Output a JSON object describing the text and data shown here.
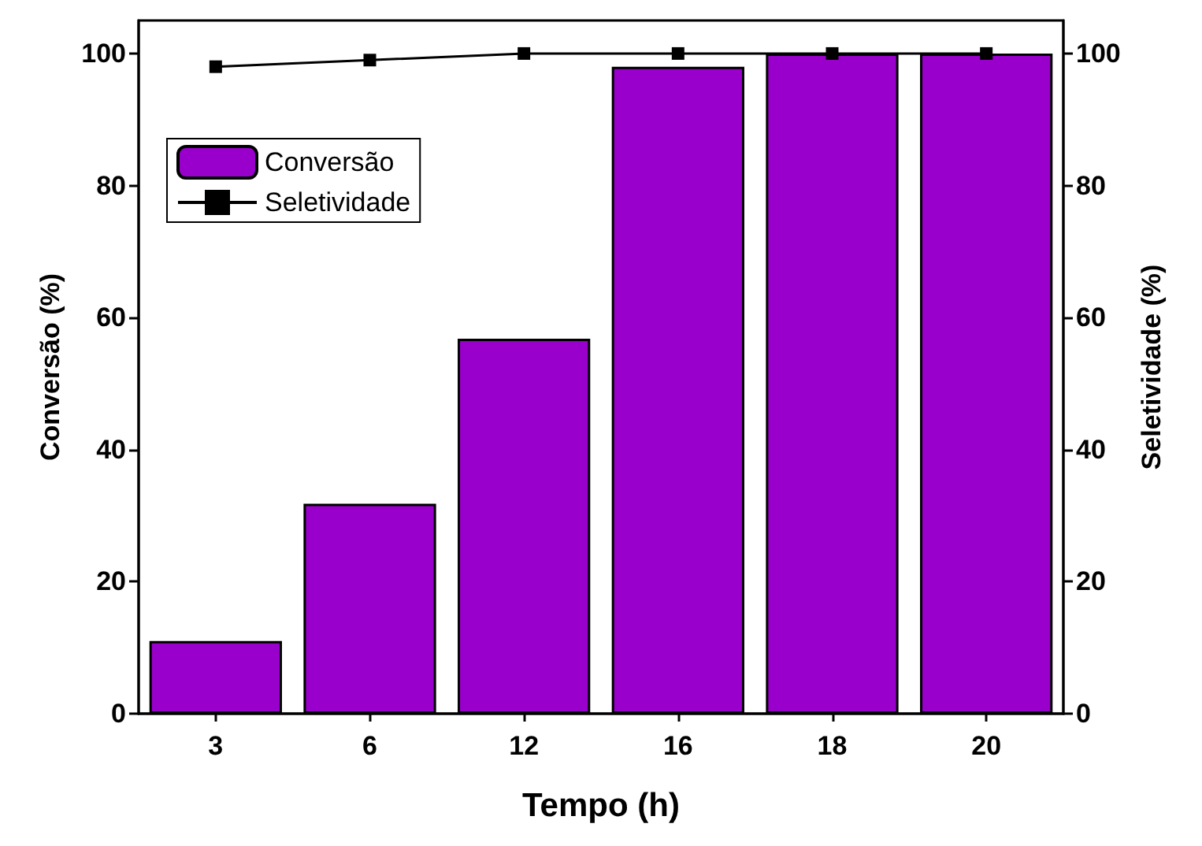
{
  "chart_data": {
    "type": "bar",
    "xlabel": "Tempo (h)",
    "ylabel": "Conversão (%)",
    "y2label": "Seletividade (%)",
    "categories": [
      "3",
      "6",
      "12",
      "16",
      "18",
      "20"
    ],
    "series": [
      {
        "name": "Conversão",
        "color": "#9900cc",
        "values": [
          11,
          31.8,
          56.8,
          98,
          100,
          100
        ]
      },
      {
        "name": "Seletividade",
        "type": "line",
        "axis": "y2",
        "color": "#000000",
        "marker": "square",
        "values": [
          98,
          99,
          100,
          100,
          100,
          100
        ]
      }
    ],
    "ylim": [
      0,
      105
    ],
    "yticks": [
      0,
      20,
      40,
      60,
      80,
      100
    ],
    "y2lim": [
      0,
      105
    ],
    "y2ticks": [
      0,
      20,
      40,
      60,
      80,
      100
    ],
    "legend": "top left",
    "grid": false
  }
}
